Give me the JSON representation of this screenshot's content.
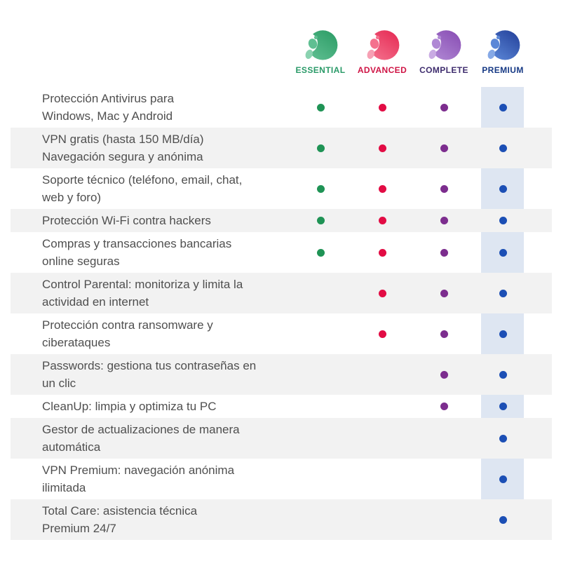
{
  "page": {
    "background": "#ffffff",
    "text_color": "#4f4f4f",
    "row_alt_color": "#f2f2f2",
    "premium_highlight_color": "#3462af",
    "premium_highlight_opacity": 0.16
  },
  "plans": [
    {
      "id": "essential",
      "label": "ESSENTIAL",
      "label_color": "#2a9a68",
      "dot_color": "#1f9355",
      "logo_dark": "#2f9e68",
      "logo_light": "#5fbf92",
      "logo_accent": "#8ad2b0"
    },
    {
      "id": "advanced",
      "label": "ADVANCED",
      "label_color": "#cf1445",
      "dot_color": "#e20c44",
      "logo_dark": "#e62e57",
      "logo_light": "#f4718d",
      "logo_accent": "#f6a0b4"
    },
    {
      "id": "complete",
      "label": "COMPLETE",
      "label_color": "#3f2d6e",
      "dot_color": "#7c2d8e",
      "logo_dark": "#8a50b5",
      "logo_light": "#b088d4",
      "logo_accent": "#c9abe3"
    },
    {
      "id": "premium",
      "label": "PREMIUM",
      "label_color": "#173a85",
      "dot_color": "#1c4fb5",
      "logo_dark": "#27459e",
      "logo_light": "#5b87d7",
      "logo_accent": "#86a9e6"
    }
  ],
  "features": [
    {
      "text": "Protección Antivirus para\nWindows, Mac y Android",
      "included": [
        "essential",
        "advanced",
        "complete",
        "premium"
      ]
    },
    {
      "text": "VPN gratis (hasta 150 MB/día)\nNavegación segura y anónima",
      "included": [
        "essential",
        "advanced",
        "complete",
        "premium"
      ]
    },
    {
      "text": "Soporte técnico (teléfono, email, chat,\nweb y foro)",
      "included": [
        "essential",
        "advanced",
        "complete",
        "premium"
      ]
    },
    {
      "text": "Protección Wi-Fi contra hackers",
      "included": [
        "essential",
        "advanced",
        "complete",
        "premium"
      ]
    },
    {
      "text": "Compras y transacciones bancarias\nonline seguras",
      "included": [
        "essential",
        "advanced",
        "complete",
        "premium"
      ]
    },
    {
      "text": "Control Parental: monitoriza y limita la\nactividad en internet",
      "included": [
        "advanced",
        "complete",
        "premium"
      ]
    },
    {
      "text": "Protección contra ransomware y\nciberataques",
      "included": [
        "advanced",
        "complete",
        "premium"
      ]
    },
    {
      "text": "Passwords: gestiona tus contraseñas en\nun clic",
      "included": [
        "complete",
        "premium"
      ]
    },
    {
      "text": "CleanUp: limpia y optimiza tu PC",
      "included": [
        "complete",
        "premium"
      ]
    },
    {
      "text": "Gestor de actualizaciones de manera\nautomática",
      "included": [
        "premium"
      ]
    },
    {
      "text": "VPN Premium: navegación anónima\nilimitada",
      "included": [
        "premium"
      ]
    },
    {
      "text": "Total Care: asistencia técnica\nPremium 24/7",
      "included": [
        "premium"
      ]
    }
  ]
}
